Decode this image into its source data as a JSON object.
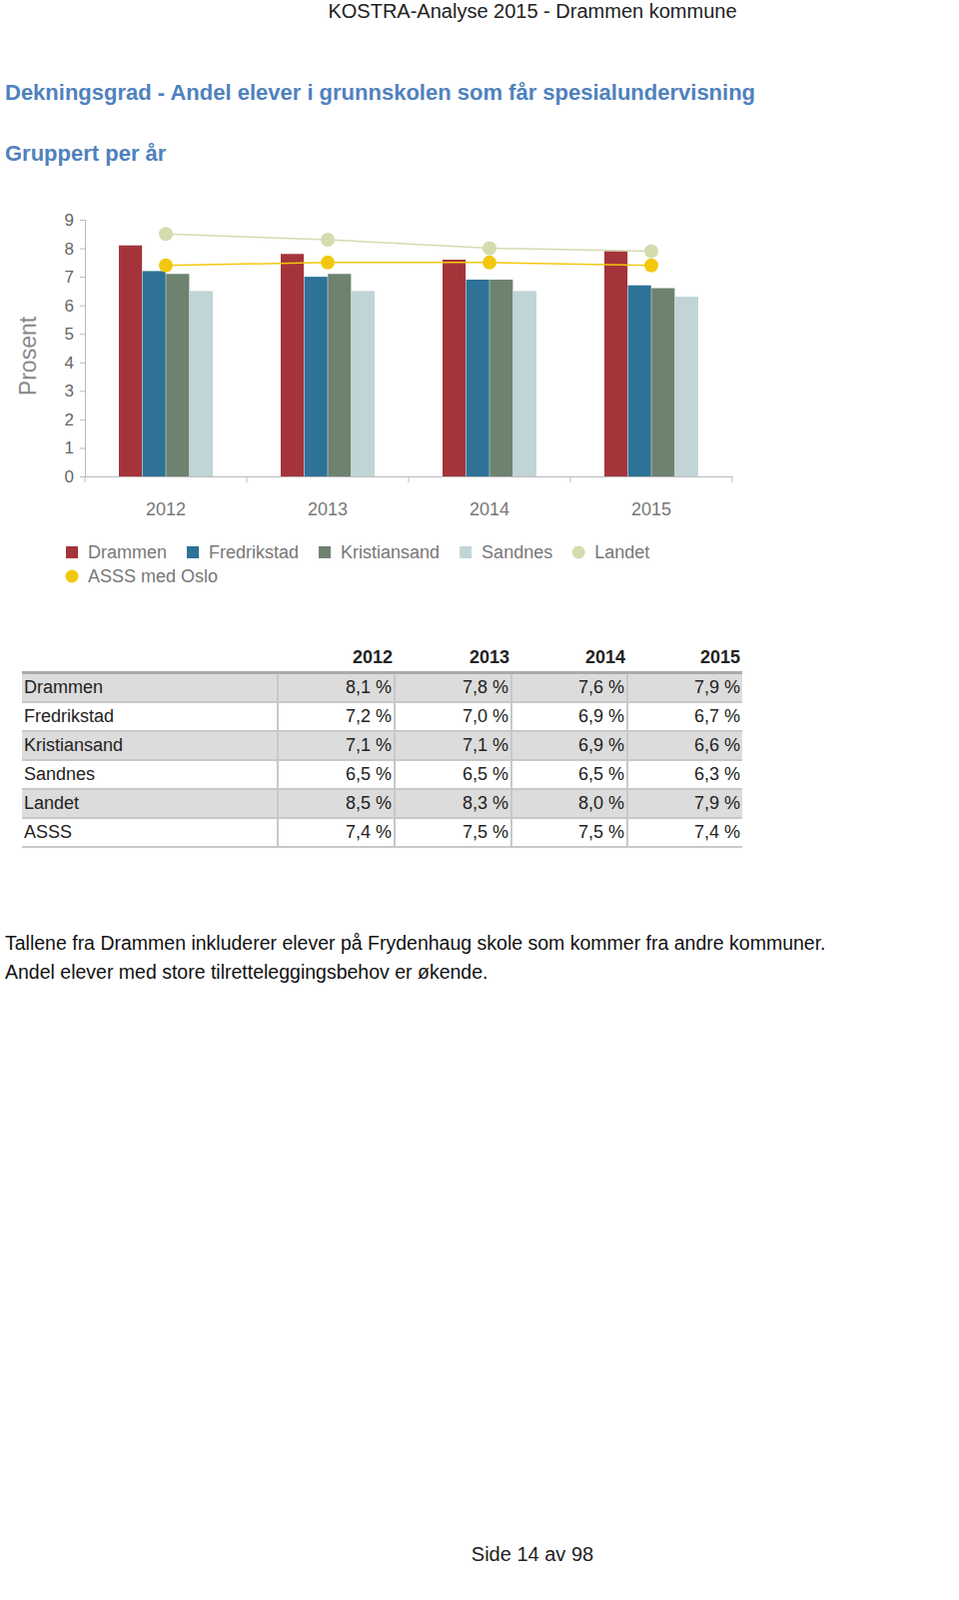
{
  "header": "KOSTRA-Analyse 2015 - Drammen kommune",
  "title": "Dekningsgrad - Andel elever i grunnskolen som får spesialundervisning",
  "subtitle": "Gruppert per år",
  "chart_data": {
    "type": "bar",
    "y_label": "Prosent",
    "categories": [
      "2012",
      "2013",
      "2014",
      "2015"
    ],
    "series": [
      {
        "name": "Drammen",
        "type": "bar",
        "color": "#a4343a",
        "values": [
          8.1,
          7.8,
          7.6,
          7.9
        ]
      },
      {
        "name": "Fredrikstad",
        "type": "bar",
        "color": "#2e7297",
        "values": [
          7.2,
          7.0,
          6.9,
          6.7
        ]
      },
      {
        "name": "Kristiansand",
        "type": "bar",
        "color": "#6e8270",
        "values": [
          7.1,
          7.1,
          6.9,
          6.6
        ]
      },
      {
        "name": "Sandnes",
        "type": "bar",
        "color": "#c1d4d6",
        "values": [
          6.5,
          6.5,
          6.5,
          6.3
        ]
      },
      {
        "name": "Landet",
        "type": "line",
        "marker": "circle",
        "color": "#d3dcae",
        "values": [
          8.5,
          8.3,
          8.0,
          7.9
        ]
      },
      {
        "name": "ASSS med Oslo",
        "type": "line",
        "marker": "circle",
        "color": "#f2c80f",
        "values": [
          7.4,
          7.5,
          7.5,
          7.4
        ]
      }
    ],
    "ylim": [
      0,
      9
    ],
    "yticks": [
      0,
      1,
      2,
      3,
      4,
      5,
      6,
      7,
      8,
      9
    ],
    "grid": false,
    "legend": "bottom"
  },
  "table": {
    "columns": [
      "2012",
      "2013",
      "2014",
      "2015"
    ],
    "rows": [
      {
        "label": "Drammen",
        "cells": [
          "8,1 %",
          "7,8 %",
          "7,6 %",
          "7,9 %"
        ]
      },
      {
        "label": "Fredrikstad",
        "cells": [
          "7,2 %",
          "7,0 %",
          "6,9 %",
          "6,7 %"
        ]
      },
      {
        "label": "Kristiansand",
        "cells": [
          "7,1 %",
          "7,1 %",
          "6,9 %",
          "6,6 %"
        ]
      },
      {
        "label": "Sandnes",
        "cells": [
          "6,5 %",
          "6,5 %",
          "6,5 %",
          "6,3 %"
        ]
      },
      {
        "label": "Landet",
        "cells": [
          "8,5 %",
          "8,3 %",
          "8,0 %",
          "7,9 %"
        ]
      },
      {
        "label": "ASSS",
        "cells": [
          "7,4 %",
          "7,5 %",
          "7,5 %",
          "7,4 %"
        ]
      }
    ]
  },
  "paragraphs": [
    "Tallene fra Drammen inkluderer elever på Frydenhaug skole som kommer fra andre kommuner.",
    "Andel elever med store tilretteleggingsbehov er økende."
  ],
  "footer": "Side 14 av 98"
}
